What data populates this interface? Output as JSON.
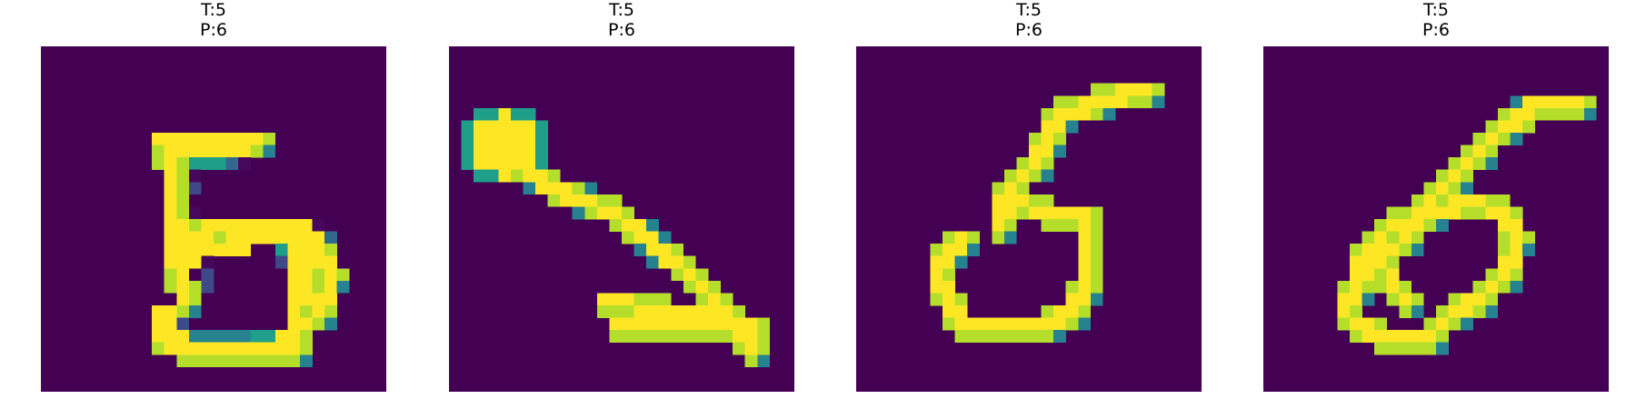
{
  "colors": {
    "background": "#ffffff",
    "colormap": "viridis",
    "low": "#440154",
    "high": "#fde725"
  },
  "panels": [
    {
      "true_label": "T:5",
      "pred_label": "P:6"
    },
    {
      "true_label": "T:5",
      "pred_label": "P:6"
    },
    {
      "true_label": "T:5",
      "pred_label": "P:6"
    },
    {
      "true_label": "T:5",
      "pred_label": "P:6"
    }
  ]
}
